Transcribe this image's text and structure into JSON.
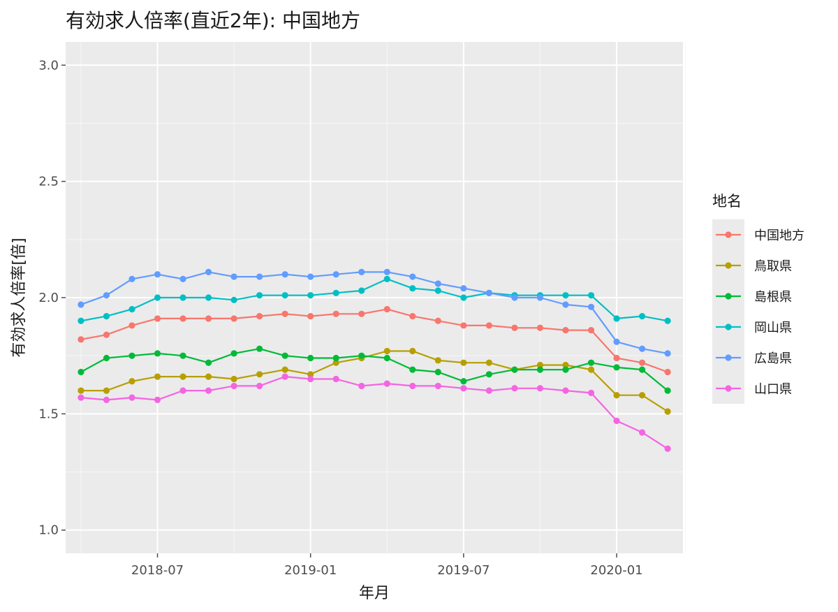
{
  "title": "有効求人倍率(直近2年): 中国地方",
  "chart_data": {
    "type": "line",
    "title": "有効求人倍率(直近2年): 中国地方",
    "xlabel": "年月",
    "ylabel": "有効求人倍率[倍]",
    "ylim": [
      0.9,
      3.1
    ],
    "yticks": [
      1.0,
      1.5,
      2.0,
      2.5,
      3.0
    ],
    "yticklabels": [
      "1.0",
      "1.5",
      "2.0",
      "2.5",
      "3.0"
    ],
    "xticks": [
      3,
      9,
      15,
      21
    ],
    "xticklabels": [
      "2018-07",
      "2019-01",
      "2019-07",
      "2020-01"
    ],
    "x": [
      "2018-04",
      "2018-05",
      "2018-06",
      "2018-07",
      "2018-08",
      "2018-09",
      "2018-10",
      "2018-11",
      "2018-12",
      "2019-01",
      "2019-02",
      "2019-03",
      "2019-04",
      "2019-05",
      "2019-06",
      "2019-07",
      "2019-08",
      "2019-09",
      "2019-10",
      "2019-11",
      "2019-12",
      "2020-01",
      "2020-02",
      "2020-03"
    ],
    "legend_title": "地名",
    "legend_position": "right",
    "series": [
      {
        "name": "中国地方",
        "color": "#F8766D",
        "values": [
          1.82,
          1.84,
          1.88,
          1.91,
          1.91,
          1.91,
          1.91,
          1.92,
          1.93,
          1.92,
          1.93,
          1.93,
          1.95,
          1.92,
          1.9,
          1.88,
          1.88,
          1.87,
          1.87,
          1.86,
          1.86,
          1.74,
          1.72,
          1.68
        ]
      },
      {
        "name": "鳥取県",
        "color": "#B79F00",
        "values": [
          1.6,
          1.6,
          1.64,
          1.66,
          1.66,
          1.66,
          1.65,
          1.67,
          1.69,
          1.67,
          1.72,
          1.74,
          1.77,
          1.77,
          1.73,
          1.72,
          1.72,
          1.69,
          1.71,
          1.71,
          1.69,
          1.58,
          1.58,
          1.51
        ]
      },
      {
        "name": "島根県",
        "color": "#00BA38",
        "values": [
          1.68,
          1.74,
          1.75,
          1.76,
          1.75,
          1.72,
          1.76,
          1.78,
          1.75,
          1.74,
          1.74,
          1.75,
          1.74,
          1.69,
          1.68,
          1.64,
          1.67,
          1.69,
          1.69,
          1.69,
          1.72,
          1.7,
          1.69,
          1.6
        ]
      },
      {
        "name": "岡山県",
        "color": "#00BFC4",
        "values": [
          1.9,
          1.92,
          1.95,
          2.0,
          2.0,
          2.0,
          1.99,
          2.01,
          2.01,
          2.01,
          2.02,
          2.03,
          2.08,
          2.04,
          2.03,
          2.0,
          2.02,
          2.01,
          2.01,
          2.01,
          2.01,
          1.91,
          1.92,
          1.9
        ]
      },
      {
        "name": "広島県",
        "color": "#619CFF",
        "values": [
          1.97,
          2.01,
          2.08,
          2.1,
          2.08,
          2.11,
          2.09,
          2.09,
          2.1,
          2.09,
          2.1,
          2.11,
          2.11,
          2.09,
          2.06,
          2.04,
          2.02,
          2.0,
          2.0,
          1.97,
          1.96,
          1.81,
          1.78,
          1.76
        ]
      },
      {
        "name": "山口県",
        "color": "#F564E3",
        "values": [
          1.57,
          1.56,
          1.57,
          1.56,
          1.6,
          1.6,
          1.62,
          1.62,
          1.66,
          1.65,
          1.65,
          1.62,
          1.63,
          1.62,
          1.62,
          1.61,
          1.6,
          1.61,
          1.61,
          1.6,
          1.59,
          1.47,
          1.42,
          1.35
        ]
      }
    ]
  }
}
